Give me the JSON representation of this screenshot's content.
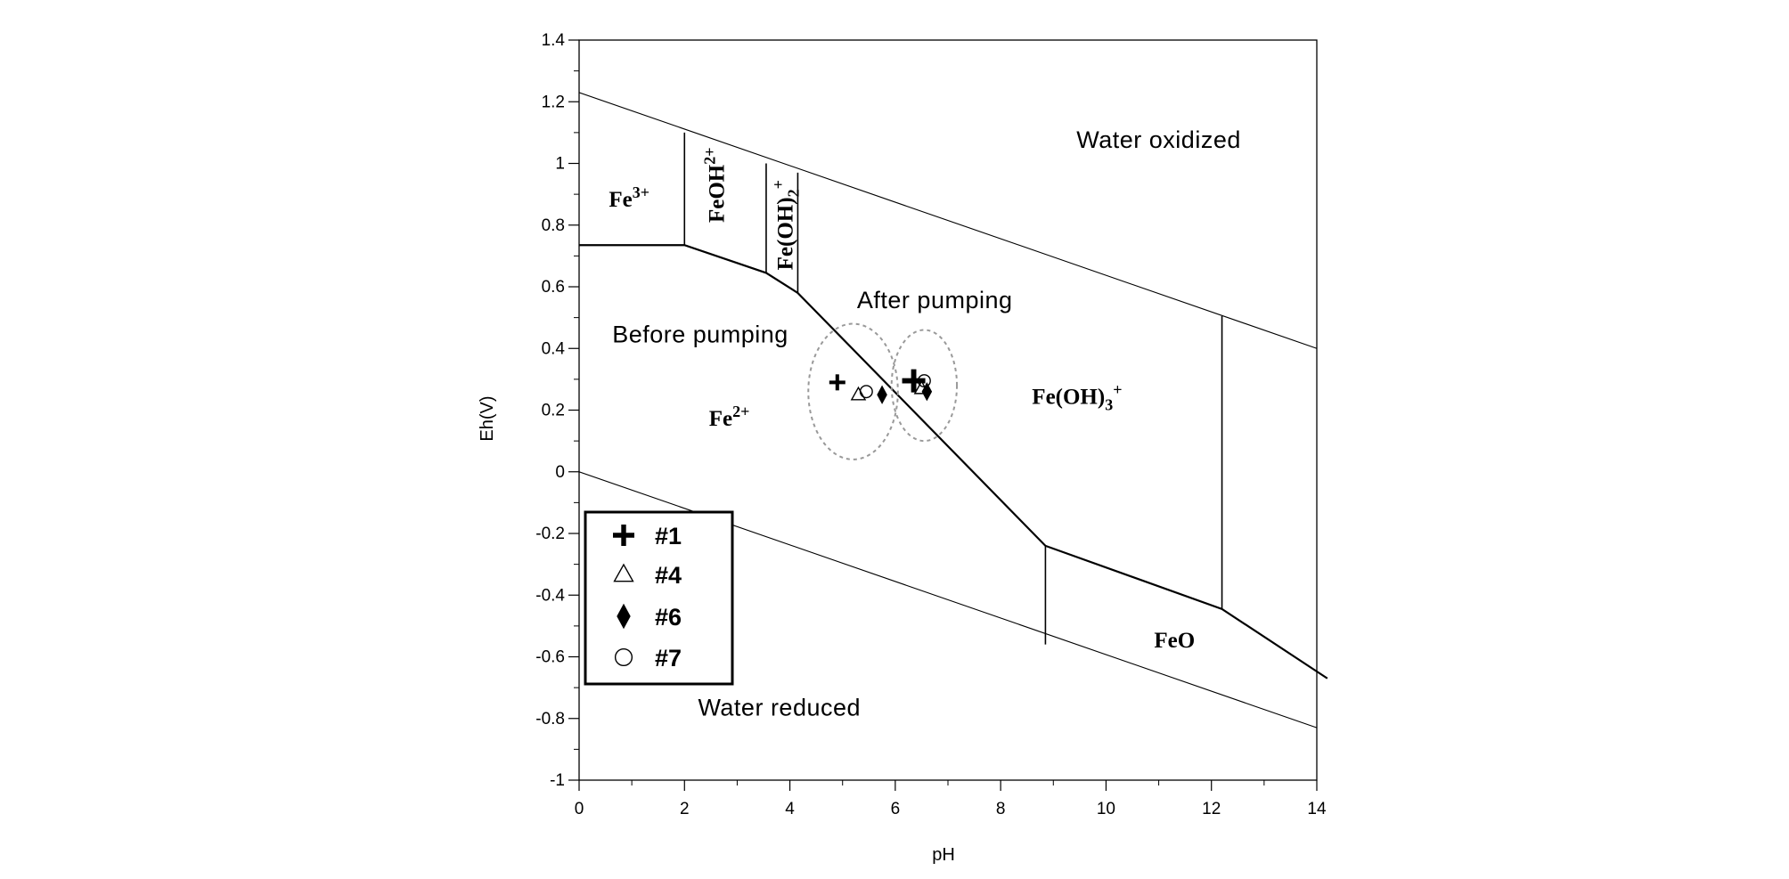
{
  "chart_data": {
    "type": "scatter",
    "xlabel": "pH",
    "ylabel": "Eh(V)",
    "xlim": [
      0,
      14
    ],
    "ylim": [
      -1,
      1.4
    ],
    "xticks": [
      "0",
      "2",
      "4",
      "6",
      "8",
      "10",
      "12",
      "14"
    ],
    "yticks": [
      "1.4",
      "1.2",
      "1",
      "0.8",
      "0.6",
      "0.4",
      "0.2",
      "0",
      "-0.2",
      "-0.4",
      "-0.6",
      "-0.8",
      "-1"
    ],
    "grid": false,
    "legend_position": "bottom-left",
    "boundary_lines": {
      "water_upper": [
        [
          0,
          1.23
        ],
        [
          14,
          0.4
        ]
      ],
      "water_lower": [
        [
          0,
          0.0
        ],
        [
          14,
          -0.83
        ]
      ],
      "fe_boundary": [
        [
          0,
          0.735
        ],
        [
          2.0,
          0.735
        ],
        [
          3.55,
          0.645
        ],
        [
          4.15,
          0.58
        ],
        [
          8.85,
          -0.24
        ],
        [
          12.2,
          -0.445
        ],
        [
          14.2,
          -0.67
        ]
      ],
      "vertical_lines": [
        {
          "x": 2.0,
          "y_from": 0.735,
          "y_to": 1.1
        },
        {
          "x": 3.55,
          "y_from": 0.645,
          "y_to": 1.0
        },
        {
          "x": 4.15,
          "y_from": 0.58,
          "y_to": 0.97
        },
        {
          "x": 8.85,
          "y_from": -0.56,
          "y_to": -0.24
        },
        {
          "x": 12.2,
          "y_from": -0.445,
          "y_to": 0.505
        }
      ]
    },
    "series": [
      {
        "name": "#1",
        "marker": "plus",
        "points": [
          [
            4.9,
            0.29
          ],
          [
            6.35,
            0.295
          ]
        ]
      },
      {
        "name": "#4",
        "marker": "triangle",
        "points": [
          [
            5.3,
            0.25
          ],
          [
            6.5,
            0.27
          ]
        ]
      },
      {
        "name": "#6",
        "marker": "diamond",
        "points": [
          [
            5.75,
            0.25
          ],
          [
            6.6,
            0.26
          ]
        ]
      },
      {
        "name": "#7",
        "marker": "circle",
        "points": [
          [
            5.45,
            0.26
          ],
          [
            6.55,
            0.295
          ]
        ]
      }
    ],
    "group_ellipses": [
      {
        "label": "Before pumping",
        "center": [
          5.2,
          0.26
        ],
        "rx_ph": 0.85,
        "ry_eh": 0.22
      },
      {
        "label": "After pumping",
        "center": [
          6.55,
          0.28
        ],
        "rx_ph": 0.62,
        "ry_eh": 0.18
      }
    ],
    "region_labels": [
      {
        "text": "Water oxidized",
        "style": "sans",
        "at": [
          11.0,
          1.05
        ]
      },
      {
        "text": "Water reduced",
        "style": "sans",
        "at": [
          3.8,
          -0.79
        ]
      },
      {
        "text": "Before pumping",
        "style": "sans",
        "at": [
          2.3,
          0.42
        ]
      },
      {
        "text": "After pumping",
        "style": "sans",
        "at": [
          6.75,
          0.53
        ]
      },
      {
        "text": "Fe",
        "sup": "3+",
        "style": "serif",
        "at": [
          0.95,
          0.86
        ]
      },
      {
        "text": "Fe",
        "sup": "2+",
        "style": "serif",
        "at": [
          2.85,
          0.15
        ]
      },
      {
        "text": "FeO",
        "style": "serif",
        "at": [
          11.3,
          -0.57
        ]
      },
      {
        "text": "Fe(OH)",
        "sub": "3",
        "sup": "+",
        "style": "serif",
        "at": [
          9.45,
          0.22
        ]
      },
      {
        "text": "FeOH",
        "sup": "2+",
        "style": "serif-vertical",
        "at": [
          2.75,
          0.93
        ]
      },
      {
        "text": "Fe(OH)",
        "sub": "2",
        "sup": "+",
        "style": "serif-vertical",
        "at": [
          4.05,
          0.8
        ]
      }
    ]
  }
}
